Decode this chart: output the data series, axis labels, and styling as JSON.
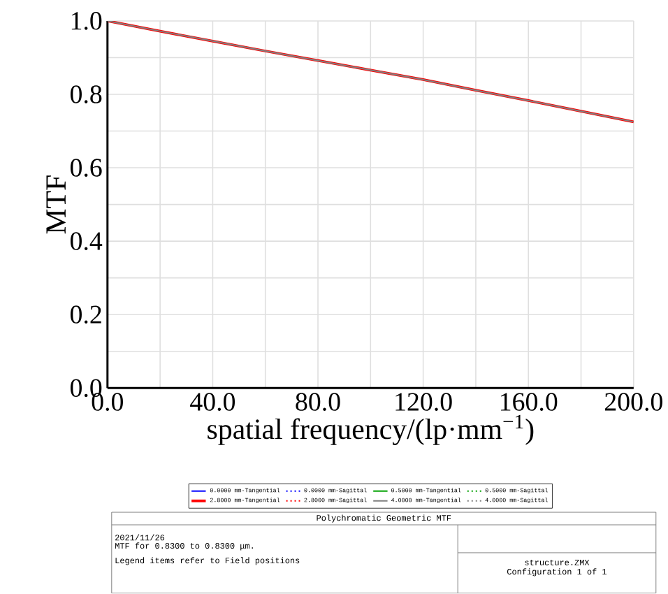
{
  "chart_data": {
    "type": "line",
    "xlabel": "spatial frequency/(lp·mm$^{−1}$)",
    "ylabel": "MTF",
    "x": [
      0,
      20,
      40,
      60,
      80,
      100,
      120,
      140,
      160,
      180,
      200
    ],
    "series": [
      {
        "name": "0.0000 mm-Tangential",
        "color": "#0000ff",
        "line_style": "solid",
        "values": [
          null,
          null,
          null,
          null,
          null,
          null,
          null,
          null,
          null,
          null,
          null
        ]
      },
      {
        "name": "0.0000 mm-Sagittal",
        "color": "#0000ff",
        "line_style": "dotted",
        "values": [
          null,
          null,
          null,
          null,
          null,
          null,
          null,
          null,
          null,
          null,
          null
        ]
      },
      {
        "name": "0.5000 mm-Tangential",
        "color": "#00a000",
        "line_style": "solid",
        "values": [
          null,
          null,
          null,
          null,
          null,
          null,
          null,
          null,
          null,
          null,
          null
        ]
      },
      {
        "name": "0.5000 mm-Sagittal",
        "color": "#00a000",
        "line_style": "dotted",
        "values": [
          null,
          null,
          null,
          null,
          null,
          null,
          null,
          null,
          null,
          null,
          null
        ]
      },
      {
        "name": "2.8000 mm-Tangential",
        "color": "#ff0000",
        "line_style": "solid",
        "values": [
          1.0,
          0.972,
          0.945,
          0.918,
          0.892,
          0.866,
          0.84,
          0.811,
          0.783,
          0.754,
          0.725
        ]
      },
      {
        "name": "2.8000 mm-Sagittal",
        "color": "#ff0000",
        "line_style": "dotted",
        "values": [
          null,
          null,
          null,
          null,
          null,
          null,
          null,
          null,
          null,
          null,
          null
        ]
      },
      {
        "name": "4.0000 mm-Tangential",
        "color": "#808080",
        "line_style": "solid",
        "values": [
          1.0,
          0.972,
          0.945,
          0.918,
          0.892,
          0.866,
          0.84,
          0.811,
          0.783,
          0.754,
          0.725
        ]
      },
      {
        "name": "4.0000 mm-Sagittal",
        "color": "#808080",
        "line_style": "dotted",
        "values": [
          null,
          null,
          null,
          null,
          null,
          null,
          null,
          null,
          null,
          null,
          null
        ]
      }
    ],
    "xlim": [
      0,
      200
    ],
    "ylim": [
      0,
      1
    ],
    "xticks": [
      {
        "value": 0,
        "label": "0.0"
      },
      {
        "value": 20,
        "label": null
      },
      {
        "value": 40,
        "label": "40.0"
      },
      {
        "value": 60,
        "label": null
      },
      {
        "value": 80,
        "label": "80.0"
      },
      {
        "value": 100,
        "label": null
      },
      {
        "value": 120,
        "label": "120.0"
      },
      {
        "value": 140,
        "label": null
      },
      {
        "value": 160,
        "label": "160.0"
      },
      {
        "value": 180,
        "label": null
      },
      {
        "value": 200,
        "label": "200.0"
      }
    ],
    "yticks": [
      {
        "value": 0,
        "label": "0.0"
      },
      {
        "value": 0.1,
        "label": null
      },
      {
        "value": 0.2,
        "label": "0.2"
      },
      {
        "value": 0.3,
        "label": null
      },
      {
        "value": 0.4,
        "label": "0.4"
      },
      {
        "value": 0.5,
        "label": null
      },
      {
        "value": 0.6,
        "label": "0.6"
      },
      {
        "value": 0.7,
        "label": null
      },
      {
        "value": 0.8,
        "label": "0.8"
      },
      {
        "value": 0.9,
        "label": null
      },
      {
        "value": 1,
        "label": "1.0"
      }
    ],
    "grid": true,
    "legend": "bottom",
    "marker": "none",
    "annotations": [
      "Polychromatic Geometric MTF",
      "2021/11/26",
      "MTF for 0.8300 to 0.8300 μm.",
      "Legend items refer to Field positions",
      "structure.ZMX",
      "Configuration 1 of 1"
    ]
  }
}
